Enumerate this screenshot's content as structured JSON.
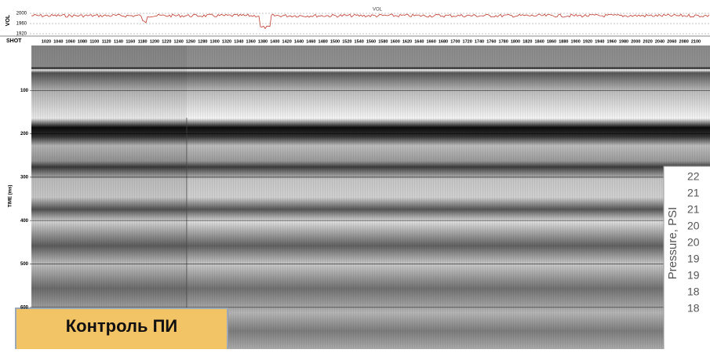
{
  "top_panel": {
    "axis_label": "VOL",
    "trace_label": "VOL",
    "ticks": [
      2000,
      1960,
      1920
    ]
  },
  "shot_axis": {
    "label": "SHOT",
    "ticks": [
      1020,
      1040,
      1060,
      1080,
      1100,
      1120,
      1140,
      1160,
      1180,
      1200,
      1220,
      1240,
      1260,
      1280,
      1300,
      1320,
      1340,
      1360,
      1380,
      1400,
      1420,
      1440,
      1460,
      1480,
      1500,
      1520,
      1540,
      1560,
      1580,
      1600,
      1620,
      1640,
      1660,
      1680,
      1700,
      1720,
      1740,
      1760,
      1780,
      1800,
      1820,
      1840,
      1860,
      1880,
      1900,
      1920,
      1940,
      1960,
      1980,
      2000,
      2020,
      2040,
      2060,
      2080,
      2100
    ]
  },
  "time_axis": {
    "label": "TIME (ms)",
    "ticks": [
      100,
      200,
      300,
      400,
      500,
      600
    ]
  },
  "overlay": {
    "axis_label": "Pressure, PSI",
    "ticks": [
      "22",
      "21",
      "21",
      "20",
      "20",
      "19",
      "19",
      "18",
      "18"
    ]
  },
  "badge": {
    "text": "Контроль ПИ"
  }
}
